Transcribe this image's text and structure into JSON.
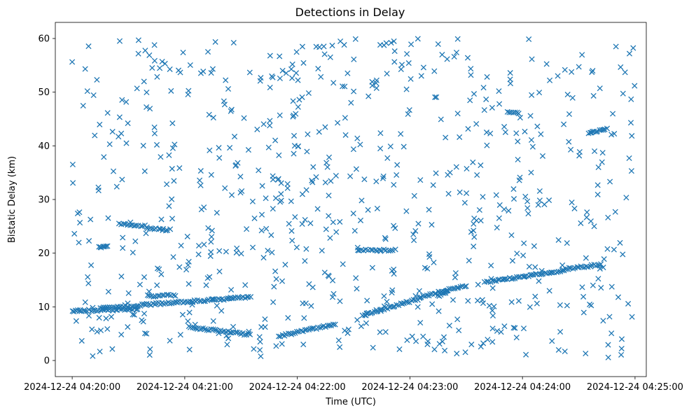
{
  "chart_data": {
    "type": "scatter",
    "title": "Detections in Delay",
    "xlabel": "Time (UTC)",
    "ylabel": "Bistatic Delay (km)",
    "x_units": "seconds since 2024-12-24 04:20:00 UTC",
    "xlim": [
      -9,
      306
    ],
    "ylim": [
      -3,
      63
    ],
    "x_ticks": [
      {
        "value": 0,
        "label": "2024-12-24 04:20:00"
      },
      {
        "value": 60,
        "label": "2024-12-24 04:21:00"
      },
      {
        "value": 120,
        "label": "2024-12-24 04:22:00"
      },
      {
        "value": 180,
        "label": "2024-12-24 04:23:00"
      },
      {
        "value": 240,
        "label": "2024-12-24 04:24:00"
      },
      {
        "value": 300,
        "label": "2024-12-24 04:25:00"
      }
    ],
    "y_ticks": [
      {
        "value": 0,
        "label": "0"
      },
      {
        "value": 10,
        "label": "10"
      },
      {
        "value": 20,
        "label": "20"
      },
      {
        "value": 30,
        "label": "30"
      },
      {
        "value": 40,
        "label": "40"
      },
      {
        "value": 50,
        "label": "50"
      },
      {
        "value": 60,
        "label": "60"
      }
    ],
    "marker": "x",
    "color": "#1f77b4",
    "tracks": [
      {
        "t_start": 0,
        "t_end": 35,
        "d_start": 9.2,
        "d_end": 9.6,
        "step": 1.0
      },
      {
        "t_start": 15,
        "t_end": 35,
        "d_start": 9.8,
        "d_end": 10.0,
        "step": 1.0
      },
      {
        "t_start": 35,
        "t_end": 75,
        "d_start": 10.3,
        "d_end": 11.3,
        "step": 1.0
      },
      {
        "t_start": 40,
        "t_end": 55,
        "d_start": 12.0,
        "d_end": 12.2,
        "step": 1.2
      },
      {
        "t_start": 75,
        "t_end": 95,
        "d_start": 11.3,
        "d_end": 11.8,
        "step": 1.0
      },
      {
        "t_start": 62,
        "t_end": 95,
        "d_start": 6.2,
        "d_end": 4.8,
        "step": 1.0
      },
      {
        "t_start": 110,
        "t_end": 140,
        "d_start": 4.5,
        "d_end": 6.8,
        "step": 1.0
      },
      {
        "t_start": 155,
        "t_end": 185,
        "d_start": 8.5,
        "d_end": 11.5,
        "step": 1.0
      },
      {
        "t_start": 185,
        "t_end": 210,
        "d_start": 11.8,
        "d_end": 14.0,
        "step": 1.0
      },
      {
        "t_start": 195,
        "t_end": 200,
        "d_start": 12.0,
        "d_end": 13.0,
        "step": 0.7
      },
      {
        "t_start": 220,
        "t_end": 262,
        "d_start": 14.6,
        "d_end": 16.8,
        "step": 1.0
      },
      {
        "t_start": 262,
        "t_end": 282,
        "d_start": 17.0,
        "d_end": 17.9,
        "step": 1.0
      },
      {
        "t_start": 25,
        "t_end": 40,
        "d_start": 25.4,
        "d_end": 25.0,
        "step": 1.2
      },
      {
        "t_start": 40,
        "t_end": 52,
        "d_start": 24.7,
        "d_end": 24.3,
        "step": 1.2
      },
      {
        "t_start": 14,
        "t_end": 19,
        "d_start": 21.2,
        "d_end": 21.2,
        "step": 0.8
      },
      {
        "t_start": 152,
        "t_end": 172,
        "d_start": 20.6,
        "d_end": 20.6,
        "step": 1.2
      },
      {
        "t_start": 232,
        "t_end": 238,
        "d_start": 46.4,
        "d_end": 46.0,
        "step": 1.0
      },
      {
        "t_start": 275,
        "t_end": 285,
        "d_start": 42.2,
        "d_end": 43.2,
        "step": 1.0
      }
    ],
    "clutter": {
      "count": 720,
      "seed": 20241224,
      "t_range": [
        0,
        300
      ],
      "d_range": [
        0.5,
        60
      ]
    }
  }
}
